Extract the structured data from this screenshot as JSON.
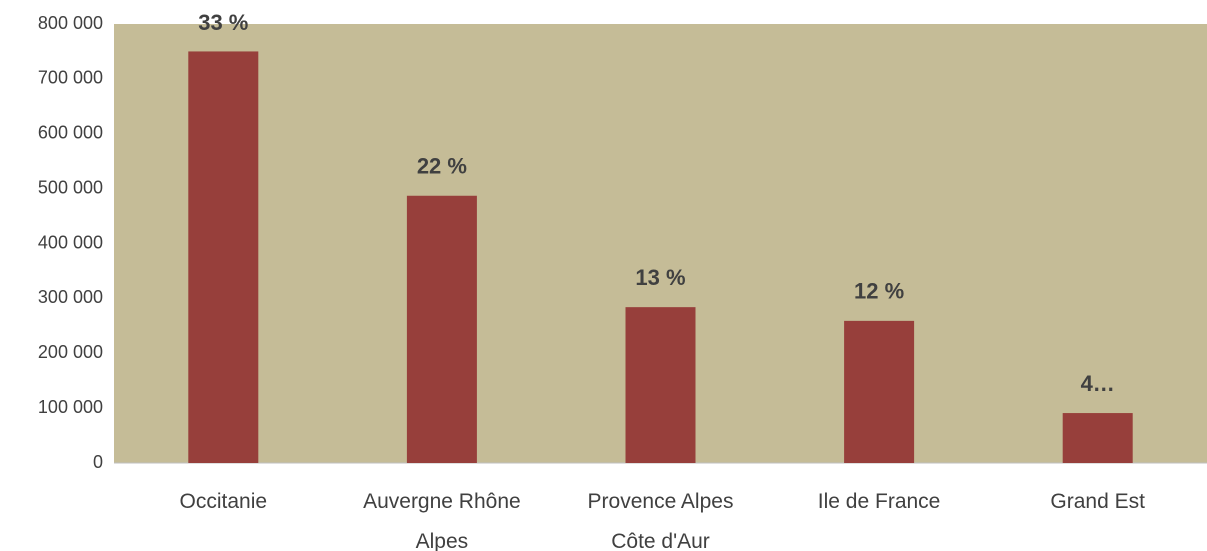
{
  "chart_data": {
    "type": "bar",
    "categories": [
      "Occitanie",
      "Auvergne Rhône Alpes",
      "Provence Alpes Côte d'Aur",
      "Ile de France",
      "Grand Est"
    ],
    "values": [
      750000,
      487000,
      284000,
      259000,
      91000
    ],
    "share_labels": [
      "33 %",
      "22 %",
      "13 %",
      "12 %",
      "4…"
    ],
    "color": "#973f3b",
    "background": "#c5bc97",
    "ylim": [
      0,
      800000
    ],
    "yticks": [
      {
        "value": 0,
        "label": "0"
      },
      {
        "value": 100000,
        "label": "100 000"
      },
      {
        "value": 200000,
        "label": "200 000"
      },
      {
        "value": 300000,
        "label": "300 000"
      },
      {
        "value": 400000,
        "label": "400 000"
      },
      {
        "value": 500000,
        "label": "500 000"
      },
      {
        "value": 600000,
        "label": "600 000"
      },
      {
        "value": 700000,
        "label": "700 000"
      },
      {
        "value": 800000,
        "label": "800 000"
      }
    ],
    "grid": false
  }
}
